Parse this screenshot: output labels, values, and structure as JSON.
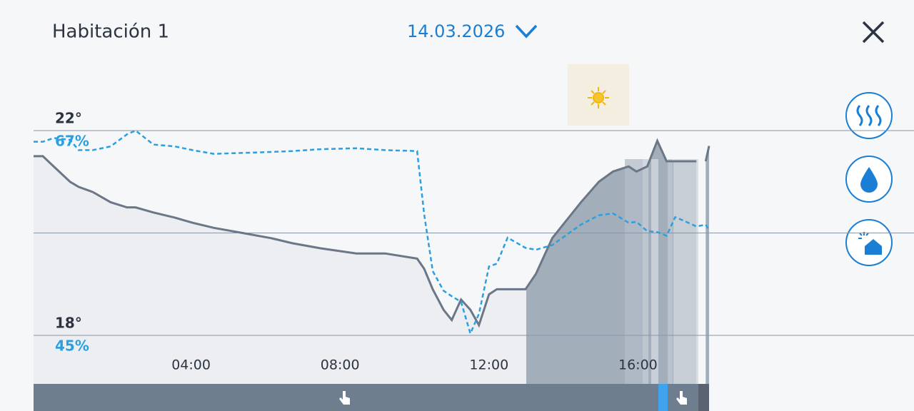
{
  "header": {
    "title": "Habitación 1",
    "date": "14.03.2026"
  },
  "chart_data": {
    "type": "line",
    "x": [
      -0.23,
      0.02,
      0.31,
      0.75,
      0.98,
      1.36,
      1.84,
      2.28,
      2.51,
      2.99,
      3.56,
      4.04,
      4.61,
      5.38,
      6.14,
      6.72,
      7.48,
      8.44,
      9.21,
      10.07,
      10.26,
      10.49,
      10.78,
      11.0,
      11.25,
      11.5,
      11.73,
      12.0,
      12.21,
      12.5,
      12.98,
      13.26,
      13.7,
      14.47,
      14.95,
      15.33,
      15.75,
      15.96,
      16.25,
      16.52,
      16.77,
      17.0,
      17.24,
      17.57,
      17.7,
      17.82,
      17.91
    ],
    "xlim": [
      -0.23,
      17.91
    ],
    "xticks": [
      {
        "value": 4,
        "label": "04:00"
      },
      {
        "value": 8,
        "label": "08:00"
      },
      {
        "value": 12,
        "label": "12:00"
      },
      {
        "value": 16,
        "label": "16:00"
      }
    ],
    "ylim": [
      18,
      22
    ],
    "yticks": [
      {
        "value": 18,
        "label": "18°"
      },
      {
        "value": 20,
        "label": null
      },
      {
        "value": 22,
        "label": "22°"
      }
    ],
    "y2lim": [
      45,
      67
    ],
    "y2ticks": [
      {
        "value": 45,
        "label": "45%"
      },
      {
        "value": 67,
        "label": "67%"
      }
    ],
    "grid": true,
    "series": [
      {
        "color": "#6b7786",
        "values": [
          21.5,
          21.5,
          21.3,
          21.0,
          20.9,
          20.8,
          20.6,
          20.5,
          20.5,
          20.4,
          20.3,
          20.2,
          20.1,
          20.0,
          19.9,
          19.8,
          19.7,
          19.6,
          19.6,
          19.5,
          19.3,
          18.9,
          18.5,
          18.3,
          18.7,
          18.5,
          18.2,
          18.8,
          18.9,
          18.9,
          18.9,
          19.2,
          19.9,
          20.6,
          21.0,
          21.2,
          21.3,
          21.2,
          21.3,
          21.8,
          21.4,
          21.4,
          21.4,
          21.4,
          null,
          21.4,
          21.7
        ]
      },
      {
        "color": "#2c9fe0",
        "axis": "y2",
        "values": [
          65.8,
          65.8,
          66.2,
          66.0,
          64.9,
          64.9,
          65.3,
          66.6,
          67.0,
          65.5,
          65.3,
          64.9,
          64.5,
          64.6,
          64.7,
          64.8,
          65.0,
          65.1,
          64.9,
          64.8,
          58.0,
          51.9,
          49.8,
          49.2,
          48.6,
          45.2,
          47.3,
          52.4,
          52.7,
          55.5,
          54.4,
          54.2,
          54.7,
          56.9,
          57.9,
          58.1,
          57.1,
          57.2,
          56.2,
          56.1,
          55.7,
          57.7,
          57.3,
          56.7,
          56.8,
          56.9,
          56.3
        ]
      }
    ]
  }
}
